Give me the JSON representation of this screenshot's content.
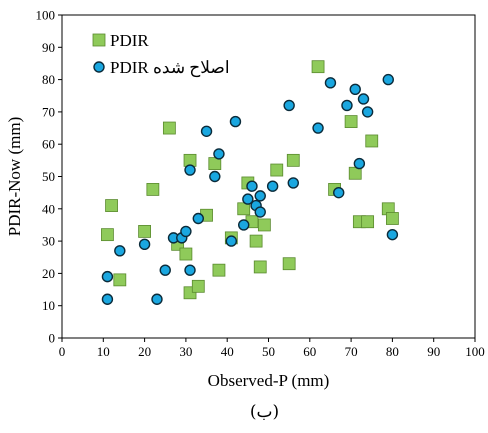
{
  "chart_data": {
    "type": "scatter",
    "title": "",
    "xlabel": "Observed-P (mm)",
    "ylabel": "PDIR-Now (mm)",
    "xlim": [
      0,
      100
    ],
    "ylim": [
      0,
      100
    ],
    "xticks": [
      0,
      10,
      20,
      30,
      40,
      50,
      60,
      70,
      80,
      90,
      100
    ],
    "yticks": [
      0,
      10,
      20,
      30,
      40,
      50,
      60,
      70,
      80,
      90,
      100
    ],
    "grid": false,
    "legend_position": "top-left",
    "caption": "(ب)",
    "series": [
      {
        "name": "PDIR",
        "marker": "square",
        "color": "#8fca5a",
        "edge_color": "#5a8a2e",
        "points": [
          [
            11,
            32
          ],
          [
            12,
            41
          ],
          [
            14,
            18
          ],
          [
            20,
            33
          ],
          [
            22,
            46
          ],
          [
            26,
            65
          ],
          [
            28,
            29
          ],
          [
            30,
            26
          ],
          [
            31,
            14
          ],
          [
            31,
            55
          ],
          [
            33,
            16
          ],
          [
            35,
            38
          ],
          [
            37,
            54
          ],
          [
            38,
            21
          ],
          [
            41,
            31
          ],
          [
            44,
            40
          ],
          [
            45,
            48
          ],
          [
            46,
            36
          ],
          [
            47,
            30
          ],
          [
            48,
            22
          ],
          [
            49,
            35
          ],
          [
            52,
            52
          ],
          [
            55,
            23
          ],
          [
            56,
            55
          ],
          [
            62,
            84
          ],
          [
            66,
            46
          ],
          [
            70,
            67
          ],
          [
            71,
            51
          ],
          [
            72,
            36
          ],
          [
            74,
            36
          ],
          [
            75,
            61
          ],
          [
            79,
            40
          ],
          [
            80,
            37
          ]
        ]
      },
      {
        "name": "PDIR اصلاح شده",
        "marker": "circle",
        "color": "#1aa7e0",
        "edge_color": "#0b2b3a",
        "points": [
          [
            11,
            19
          ],
          [
            11,
            12
          ],
          [
            14,
            27
          ],
          [
            20,
            29
          ],
          [
            23,
            12
          ],
          [
            25,
            21
          ],
          [
            27,
            31
          ],
          [
            29,
            31
          ],
          [
            30,
            33
          ],
          [
            31,
            52
          ],
          [
            31,
            21
          ],
          [
            33,
            37
          ],
          [
            35,
            64
          ],
          [
            37,
            50
          ],
          [
            38,
            57
          ],
          [
            41,
            30
          ],
          [
            42,
            67
          ],
          [
            44,
            35
          ],
          [
            45,
            43
          ],
          [
            46,
            47
          ],
          [
            47,
            41
          ],
          [
            48,
            39
          ],
          [
            48,
            44
          ],
          [
            51,
            47
          ],
          [
            55,
            72
          ],
          [
            56,
            48
          ],
          [
            62,
            65
          ],
          [
            65,
            79
          ],
          [
            67,
            45
          ],
          [
            69,
            72
          ],
          [
            71,
            77
          ],
          [
            72,
            54
          ],
          [
            73,
            74
          ],
          [
            74,
            70
          ],
          [
            79,
            80
          ],
          [
            80,
            32
          ]
        ]
      }
    ]
  }
}
